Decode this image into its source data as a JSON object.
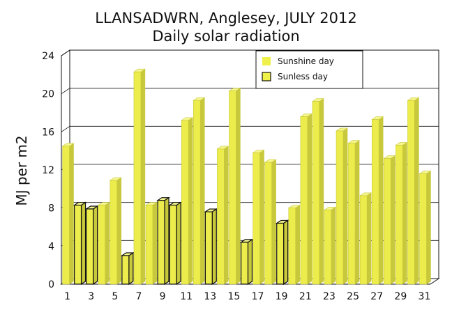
{
  "chart_data": {
    "type": "bar",
    "title": "LLANSADWRN, Anglesey, JULY 2012",
    "subtitle": "Daily solar radiation",
    "xlabel": "",
    "ylabel": "MJ per m2",
    "ylim": [
      0,
      24
    ],
    "yticks": [
      "0",
      "4",
      "8",
      "12",
      "16",
      "20",
      "24"
    ],
    "xticks": [
      "1",
      "3",
      "5",
      "7",
      "9",
      "11",
      "13",
      "15",
      "17",
      "19",
      "21",
      "23",
      "25",
      "27",
      "29",
      "31"
    ],
    "grid": true,
    "legend_position": "top-right",
    "categories": [
      1,
      2,
      3,
      4,
      5,
      6,
      7,
      8,
      9,
      10,
      11,
      12,
      13,
      14,
      15,
      16,
      17,
      18,
      19,
      20,
      21,
      22,
      23,
      24,
      25,
      26,
      27,
      28,
      29,
      30,
      31
    ],
    "series": [
      {
        "name": "Sunshine day",
        "color": "#e8e84a",
        "values": [
          14.5,
          null,
          null,
          8.3,
          10.9,
          null,
          22.3,
          8.3,
          null,
          null,
          17.2,
          19.3,
          null,
          14.2,
          20.3,
          null,
          13.8,
          12.8,
          null,
          8.0,
          17.6,
          19.2,
          7.8,
          16.1,
          14.8,
          9.3,
          17.3,
          13.2,
          14.6,
          19.3,
          11.6
        ]
      },
      {
        "name": "Sunless day",
        "color": "#e8e84a",
        "values": [
          null,
          8.3,
          7.9,
          null,
          null,
          3.0,
          null,
          null,
          8.8,
          8.3,
          null,
          null,
          7.6,
          null,
          null,
          4.4,
          null,
          null,
          6.4,
          null,
          null,
          null,
          null,
          null,
          null,
          null,
          null,
          null,
          null,
          null,
          null
        ]
      }
    ],
    "legend": [
      "Sunshine day",
      "Sunless day"
    ]
  }
}
